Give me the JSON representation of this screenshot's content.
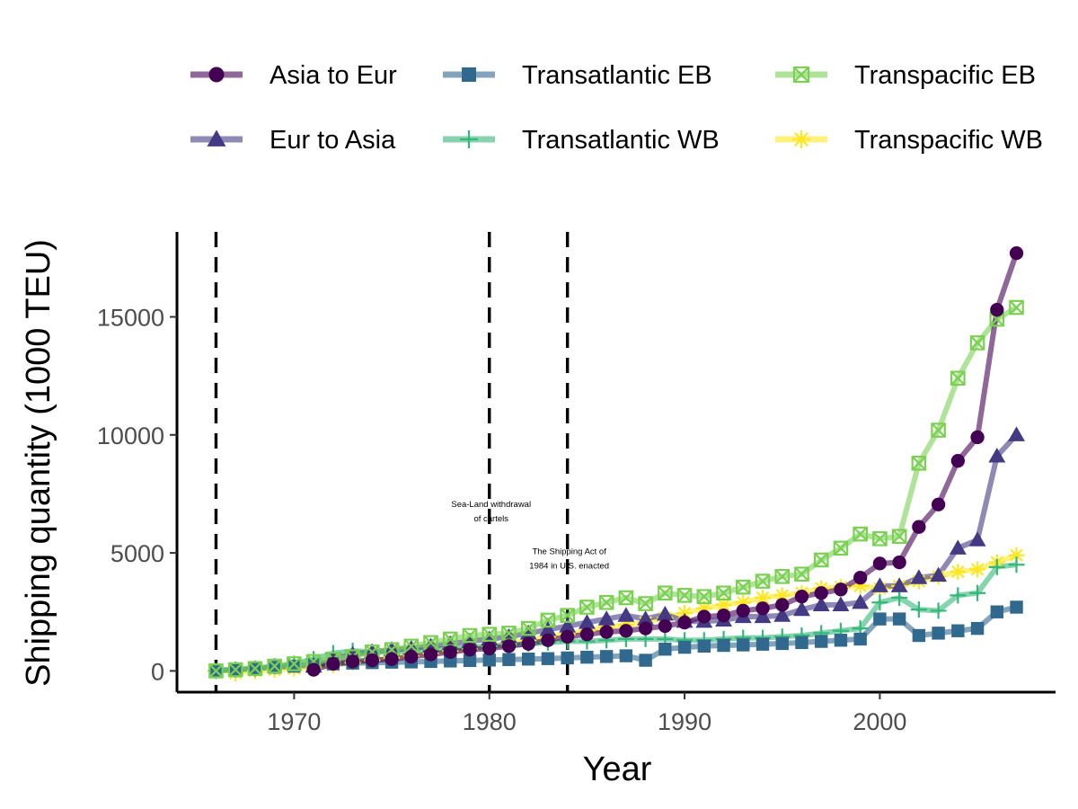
{
  "chart_data": {
    "type": "line",
    "xlabel": "Year",
    "ylabel": "Shipping quantity (1000 TEU)",
    "xlim": [
      1964,
      2009
    ],
    "ylim": [
      -900,
      18600
    ],
    "x_ticks": [
      "1970",
      "1980",
      "1990",
      "2000"
    ],
    "y_ticks": [
      "0",
      "5000",
      "10000",
      "15000"
    ],
    "grid": false,
    "legend_position": "top",
    "legend_rows": [
      [
        "Asia to Eur",
        "Transatlantic EB",
        "Transpacific EB"
      ],
      [
        "Eur to Asia",
        "Transatlantic WB",
        "Transpacific WB"
      ]
    ],
    "vlines": [
      {
        "x": 1966,
        "style": "dashed"
      },
      {
        "x": 1980,
        "style": "dashed",
        "label": [
          "Sea-Land withdrawal",
          "of cartels"
        ]
      },
      {
        "x": 1984,
        "style": "dashed",
        "label": [
          "The Shipping Act of",
          "1984 in U.S. enacted"
        ]
      }
    ],
    "series": [
      {
        "name": "Transpacific WB",
        "color": "#fde725",
        "marker": "asterisk",
        "x": [
          1967,
          1968,
          1969,
          1970,
          1971,
          1972,
          1973,
          1974,
          1975,
          1976,
          1977,
          1978,
          1979,
          1980,
          1981,
          1982,
          1983,
          1984,
          1985,
          1986,
          1987,
          1988,
          1989,
          1990,
          1991,
          1992,
          1993,
          1994,
          1995,
          1996,
          1997,
          1998,
          1999,
          2000,
          2001,
          2002,
          2003,
          2004,
          2005,
          2006,
          2007
        ],
        "y": [
          -100,
          0,
          50,
          100,
          150,
          250,
          350,
          450,
          550,
          650,
          750,
          850,
          950,
          1050,
          1150,
          1300,
          1450,
          1550,
          1700,
          1850,
          1950,
          2050,
          2250,
          2450,
          2650,
          2800,
          2900,
          3100,
          3200,
          3300,
          3500,
          3550,
          3600,
          3500,
          3600,
          3800,
          4000,
          4200,
          4300,
          4600,
          4900
        ]
      },
      {
        "name": "Transatlantic WB",
        "color": "#35b779",
        "marker": "plus",
        "x": [
          1966,
          1967,
          1968,
          1969,
          1970,
          1971,
          1972,
          1973,
          1974,
          1975,
          1976,
          1977,
          1978,
          1979,
          1980,
          1981,
          1982,
          1983,
          1984,
          1985,
          1986,
          1987,
          1988,
          1989,
          1990,
          1991,
          1992,
          1993,
          1994,
          1995,
          1996,
          1997,
          1998,
          1999,
          2000,
          2001,
          2002,
          2003,
          2004,
          2005,
          2006,
          2007
        ],
        "y": [
          0,
          50,
          100,
          200,
          300,
          500,
          750,
          850,
          800,
          800,
          850,
          900,
          950,
          1000,
          1050,
          1100,
          1150,
          1200,
          1250,
          1250,
          1300,
          1350,
          1350,
          1350,
          1300,
          1300,
          1350,
          1400,
          1400,
          1450,
          1500,
          1600,
          1700,
          1800,
          2900,
          3100,
          2600,
          2550,
          3200,
          3300,
          4400,
          4500
        ]
      },
      {
        "name": "Transatlantic EB",
        "color": "#31688e",
        "marker": "square",
        "x": [
          1966,
          1967,
          1968,
          1969,
          1970,
          1971,
          1972,
          1973,
          1974,
          1975,
          1976,
          1977,
          1978,
          1979,
          1980,
          1981,
          1982,
          1983,
          1984,
          1985,
          1986,
          1987,
          1988,
          1989,
          1990,
          1991,
          1992,
          1993,
          1994,
          1995,
          1996,
          1997,
          1998,
          1999,
          2000,
          2001,
          2002,
          2003,
          2004,
          2005,
          2006,
          2007
        ],
        "y": [
          30,
          60,
          100,
          150,
          200,
          250,
          300,
          330,
          350,
          370,
          380,
          400,
          420,
          440,
          460,
          480,
          500,
          520,
          550,
          580,
          610,
          640,
          450,
          920,
          1000,
          1050,
          1080,
          1100,
          1130,
          1160,
          1200,
          1250,
          1300,
          1350,
          2200,
          2200,
          1500,
          1600,
          1700,
          1800,
          2500,
          2700
        ]
      },
      {
        "name": "Eur to Asia",
        "color": "#443a83",
        "marker": "triangle",
        "x": [
          1971,
          1972,
          1973,
          1974,
          1975,
          1976,
          1977,
          1978,
          1979,
          1980,
          1981,
          1982,
          1983,
          1984,
          1985,
          1986,
          1987,
          1988,
          1989,
          1990,
          1991,
          1992,
          1993,
          1994,
          1995,
          1996,
          1997,
          1998,
          1999,
          2000,
          2001,
          2002,
          2003,
          2004,
          2005,
          2006,
          2007
        ],
        "y": [
          200,
          500,
          700,
          800,
          900,
          950,
          1050,
          1150,
          1250,
          1350,
          1450,
          1600,
          1750,
          1900,
          2050,
          2200,
          2350,
          2200,
          2400,
          2100,
          2100,
          2150,
          2300,
          2300,
          2350,
          2600,
          2800,
          2800,
          2900,
          3600,
          3600,
          3950,
          4050,
          5200,
          5550,
          9100,
          10000
        ]
      },
      {
        "name": "Transpacific EB",
        "color": "#7ad151",
        "marker": "square-x",
        "x": [
          1966,
          1967,
          1968,
          1969,
          1970,
          1971,
          1972,
          1973,
          1974,
          1975,
          1976,
          1977,
          1978,
          1979,
          1980,
          1981,
          1982,
          1983,
          1984,
          1985,
          1986,
          1987,
          1988,
          1989,
          1990,
          1991,
          1992,
          1993,
          1994,
          1995,
          1996,
          1997,
          1998,
          1999,
          2000,
          2001,
          2002,
          2003,
          2004,
          2005,
          2006,
          2007
        ],
        "y": [
          0,
          50,
          100,
          200,
          300,
          400,
          500,
          600,
          800,
          900,
          1050,
          1200,
          1350,
          1500,
          1550,
          1600,
          1800,
          2150,
          2350,
          2700,
          2900,
          3100,
          2850,
          3300,
          3200,
          3150,
          3300,
          3550,
          3800,
          4000,
          4100,
          4700,
          5200,
          5800,
          5600,
          5700,
          8800,
          10200,
          12400,
          13900,
          14900,
          15400
        ]
      },
      {
        "name": "Asia to Eur",
        "color": "#440154",
        "marker": "circle",
        "x": [
          1971,
          1972,
          1973,
          1974,
          1975,
          1976,
          1977,
          1978,
          1979,
          1980,
          1981,
          1982,
          1983,
          1984,
          1985,
          1986,
          1987,
          1988,
          1989,
          1990,
          1991,
          1992,
          1993,
          1994,
          1995,
          1996,
          1997,
          1998,
          1999,
          2000,
          2001,
          2002,
          2003,
          2004,
          2005,
          2006,
          2007
        ],
        "y": [
          50,
          300,
          400,
          450,
          500,
          600,
          700,
          800,
          900,
          950,
          1050,
          1150,
          1300,
          1450,
          1550,
          1650,
          1700,
          1800,
          1900,
          2050,
          2300,
          2350,
          2550,
          2650,
          2800,
          3150,
          3300,
          3450,
          3950,
          4550,
          4600,
          6100,
          7050,
          8900,
          9900,
          15300,
          17700
        ]
      }
    ]
  }
}
